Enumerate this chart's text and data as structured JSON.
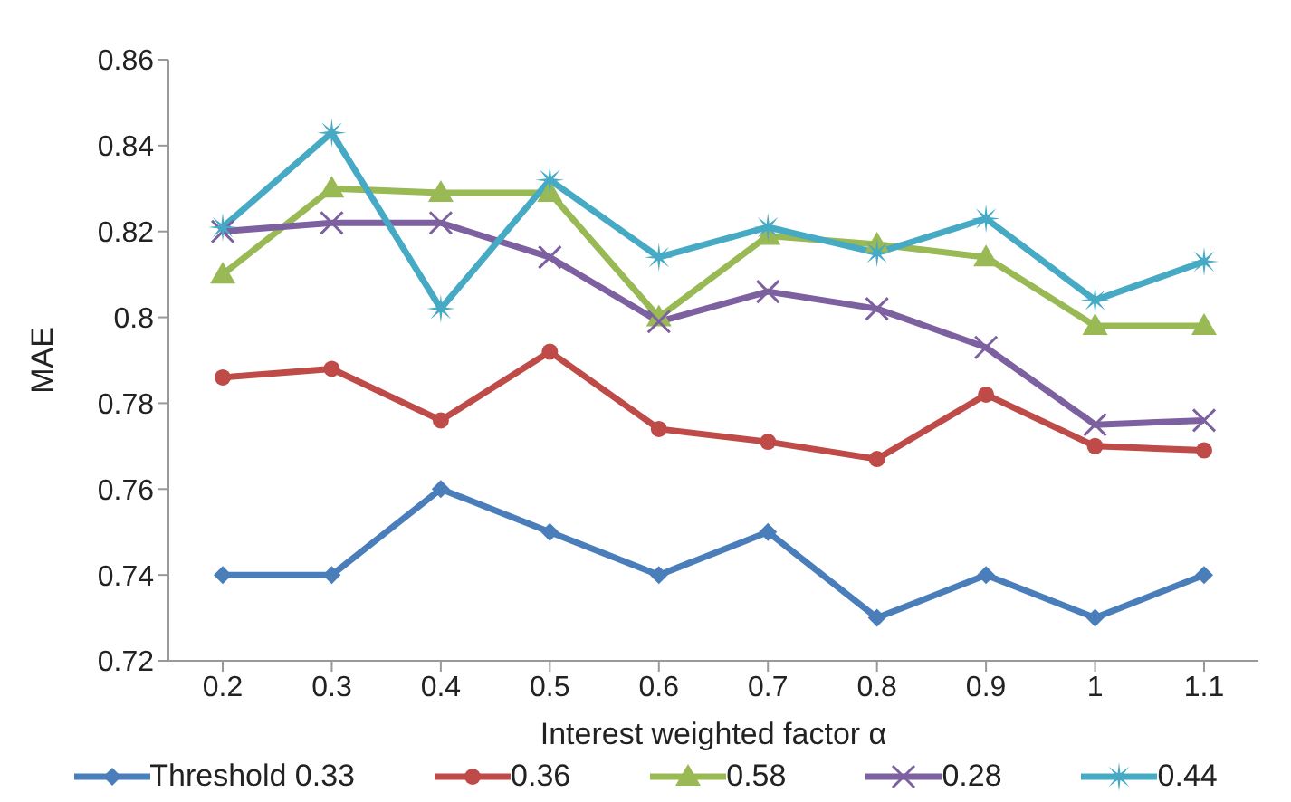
{
  "chart_data": {
    "type": "line",
    "xlabel": "Interest weighted factor α",
    "ylabel": "MAE",
    "categories": [
      "0.2",
      "0.3",
      "0.4",
      "0.5",
      "0.6",
      "0.7",
      "0.8",
      "0.9",
      "1",
      "1.1"
    ],
    "series": [
      {
        "name": "Threshold 0.33",
        "color": "#4a7ebb",
        "marker": "diamond",
        "values": [
          0.74,
          0.74,
          0.76,
          0.75,
          0.74,
          0.75,
          0.73,
          0.74,
          0.73,
          0.74
        ]
      },
      {
        "name": "0.36",
        "color": "#be4b48",
        "marker": "circle",
        "values": [
          0.786,
          0.788,
          0.776,
          0.792,
          0.774,
          0.771,
          0.767,
          0.782,
          0.77,
          0.769
        ]
      },
      {
        "name": "0.58",
        "color": "#98b954",
        "marker": "triangle",
        "values": [
          0.81,
          0.83,
          0.829,
          0.829,
          0.8,
          0.819,
          0.817,
          0.814,
          0.798,
          0.798
        ]
      },
      {
        "name": "0.28",
        "color": "#7d60a0",
        "marker": "cross",
        "values": [
          0.82,
          0.822,
          0.822,
          0.814,
          0.799,
          0.806,
          0.802,
          0.793,
          0.775,
          0.776
        ]
      },
      {
        "name": "0.44",
        "color": "#46aac5",
        "marker": "star",
        "values": [
          0.821,
          0.843,
          0.802,
          0.832,
          0.814,
          0.821,
          0.815,
          0.823,
          0.804,
          0.813
        ]
      }
    ],
    "ylim": [
      0.72,
      0.86
    ],
    "yticks": [
      0.72,
      0.74,
      0.76,
      0.78,
      0.8,
      0.82,
      0.84,
      0.86
    ],
    "grid": false,
    "legend": "bottom"
  }
}
